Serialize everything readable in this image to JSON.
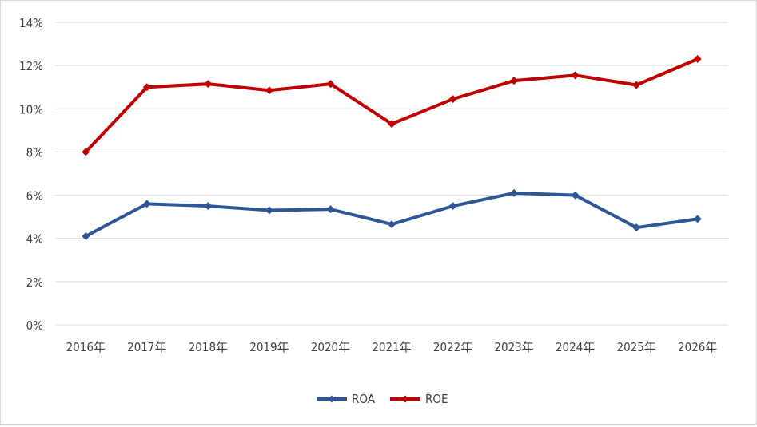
{
  "chart_data": {
    "type": "line",
    "title": "",
    "xlabel": "",
    "ylabel": "",
    "categories": [
      "2016年",
      "2017年",
      "2018年",
      "2019年",
      "2020年",
      "2021年",
      "2022年",
      "2023年",
      "2024年",
      "2025年",
      "2026年"
    ],
    "y_ticks": [
      "0%",
      "2%",
      "4%",
      "6%",
      "8%",
      "10%",
      "12%",
      "14%"
    ],
    "ylim": [
      0,
      14
    ],
    "grid": true,
    "legend_position": "bottom",
    "series": [
      {
        "name": "ROA",
        "color": "#2e5597",
        "values": [
          4.1,
          5.6,
          5.5,
          5.3,
          5.35,
          4.65,
          5.5,
          6.1,
          6.0,
          4.5,
          4.9
        ]
      },
      {
        "name": "ROE",
        "color": "#c00000",
        "values": [
          8.0,
          11.0,
          11.15,
          10.85,
          11.15,
          9.3,
          10.45,
          11.3,
          11.55,
          11.1,
          12.3
        ]
      }
    ]
  }
}
